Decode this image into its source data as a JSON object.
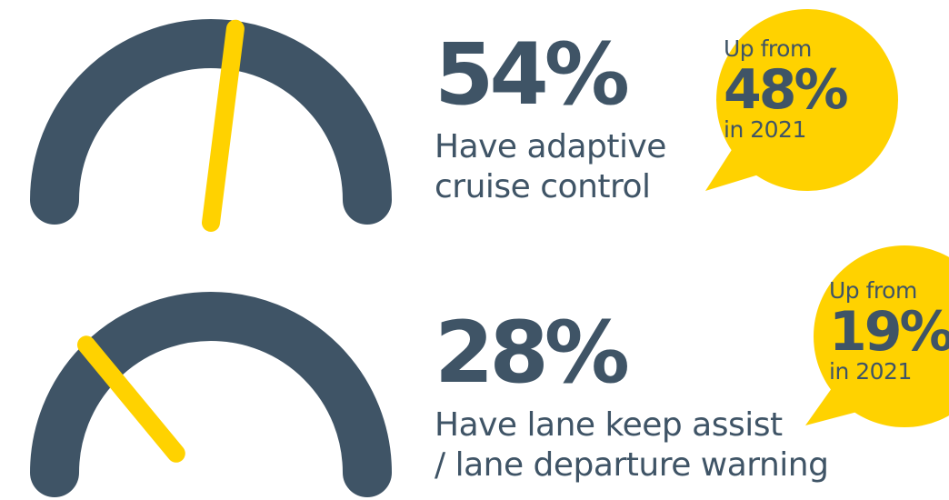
{
  "colors": {
    "dial": "#3f5466",
    "needle": "#ffd200",
    "bubble": "#ffd200",
    "text": "#3f5466"
  },
  "stats": [
    {
      "id": "adaptive-cruise-control",
      "percent_label": "54%",
      "level_percent": 54,
      "description_line1": "Have adaptive",
      "description_line2": "cruise control",
      "bubble": {
        "up_from": "Up from",
        "previous_percent_label": "48%",
        "year_label": "in 2021"
      }
    },
    {
      "id": "lane-keep-assist",
      "percent_label": "28%",
      "level_percent": 28,
      "description_line1": "Have lane keep assist",
      "description_line2": "/ lane departure warning",
      "bubble": {
        "up_from": "Up from",
        "previous_percent_label": "19%",
        "year_label": "in 2021"
      }
    }
  ]
}
